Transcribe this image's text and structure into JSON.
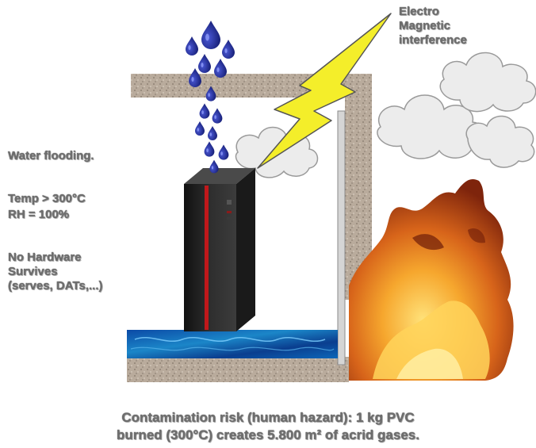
{
  "labels": {
    "emi": [
      "Electro",
      "Magnetic",
      "interference"
    ],
    "water": "Water flooding.",
    "temp": "Temp > 300°C",
    "rh": "RH = 100%",
    "hardware": [
      "No Hardware",
      "Survives",
      "(serves, DATs,...)"
    ],
    "caption": [
      "Contamination risk (human hazard): 1 kg PVC",
      "burned (300°C) creates 5.800 m² of acrid gases."
    ]
  },
  "colors": {
    "concrete": "#b9ab9c",
    "water_drop": "#1f2a8c",
    "lightning": "#f4ee2a",
    "server": "#252525",
    "server_stripe": "#c0181b",
    "floor_water": "#0a4fa8",
    "fire_dark": "#8a2a0c",
    "fire_light": "#f6b73a",
    "smoke": "#e9e9e9"
  }
}
